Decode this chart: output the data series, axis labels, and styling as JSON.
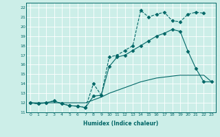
{
  "xlabel": "Humidex (Indice chaleur)",
  "bg_color": "#cceee8",
  "line_color": "#006666",
  "xlim": [
    -0.5,
    23.5
  ],
  "ylim": [
    11,
    22.5
  ],
  "xticks": [
    0,
    1,
    2,
    3,
    4,
    5,
    6,
    7,
    8,
    9,
    10,
    11,
    12,
    13,
    14,
    15,
    16,
    17,
    18,
    19,
    20,
    21,
    22,
    23
  ],
  "yticks": [
    11,
    12,
    13,
    14,
    15,
    16,
    17,
    18,
    19,
    20,
    21,
    22
  ],
  "series": [
    {
      "x": [
        0,
        1,
        2,
        3,
        4,
        5,
        6,
        7,
        8,
        9,
        10,
        11,
        12,
        13,
        14,
        15,
        16,
        17,
        18,
        19,
        20,
        21,
        22,
        23
      ],
      "y": [
        12.0,
        12.0,
        12.0,
        12.0,
        12.0,
        12.0,
        12.0,
        12.0,
        12.3,
        12.6,
        13.0,
        13.3,
        13.6,
        13.9,
        14.2,
        14.4,
        14.6,
        14.7,
        14.8,
        14.9,
        14.9,
        14.9,
        14.9,
        14.2
      ],
      "style": "-",
      "marker": null,
      "linewidth": 0.8
    },
    {
      "x": [
        0,
        1,
        2,
        3,
        4,
        5,
        6,
        7,
        8,
        9,
        10,
        11,
        12,
        13,
        14,
        15,
        16,
        17,
        18,
        19,
        20,
        21,
        22,
        23
      ],
      "y": [
        12.0,
        11.9,
        12.0,
        12.2,
        11.9,
        11.7,
        11.65,
        11.5,
        12.7,
        12.8,
        15.8,
        16.8,
        17.0,
        17.5,
        18.0,
        18.5,
        19.0,
        19.3,
        19.7,
        19.5,
        17.4,
        15.6,
        14.2,
        14.2
      ],
      "style": "-",
      "marker": "D",
      "linewidth": 0.8,
      "markersize": 2.5
    },
    {
      "x": [
        0,
        1,
        2,
        3,
        4,
        5,
        6,
        7,
        8,
        9,
        10,
        11,
        12,
        13,
        14,
        15,
        16,
        17,
        18,
        19,
        20,
        21,
        22,
        23
      ],
      "y": [
        12.0,
        11.9,
        12.0,
        12.2,
        11.9,
        11.7,
        11.65,
        11.5,
        14.0,
        12.8,
        16.8,
        17.0,
        17.5,
        18.0,
        21.7,
        21.0,
        21.3,
        21.5,
        20.6,
        20.5,
        21.3,
        21.5,
        21.4,
        null
      ],
      "style": "--",
      "marker": "D",
      "linewidth": 0.8,
      "markersize": 2.5
    }
  ]
}
